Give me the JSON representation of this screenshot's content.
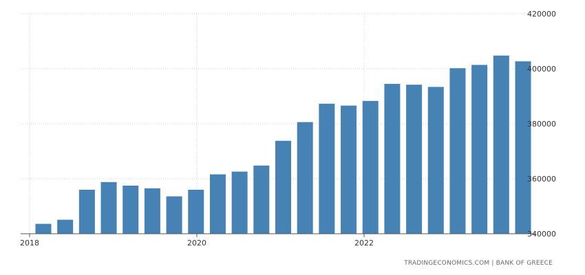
{
  "chart_data": {
    "type": "bar",
    "title": "",
    "xlabel": "",
    "ylabel": "",
    "x_ticks": [
      "2018",
      "2020",
      "2022"
    ],
    "y_ticks": [
      340000,
      360000,
      380000,
      400000,
      420000
    ],
    "ylim": [
      340000,
      420000
    ],
    "grid": true,
    "color": "#4682b4",
    "values": [
      343600,
      345100,
      356000,
      358800,
      357500,
      356500,
      353600,
      356000,
      361600,
      362600,
      364800,
      373800,
      380600,
      387300,
      386600,
      388300,
      394500,
      394200,
      393400,
      400200,
      401400,
      404800,
      402700
    ]
  },
  "source": "TRADINGECONOMICS.COM  |  BANK OF GREECE"
}
